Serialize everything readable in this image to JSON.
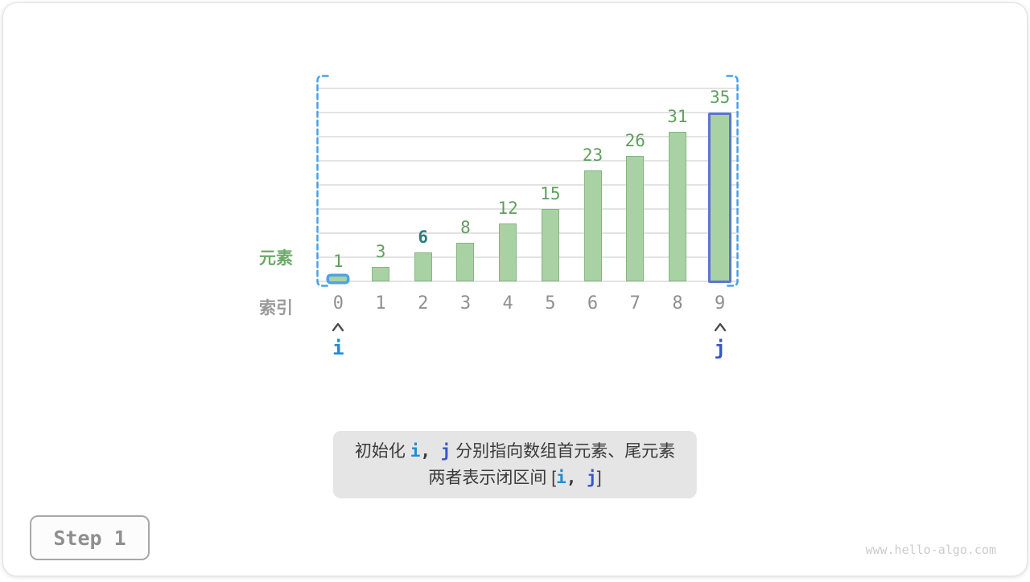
{
  "page": {
    "step_label": "Step 1",
    "watermark": "www.hello-algo.com"
  },
  "chart_data": {
    "type": "bar",
    "title": "",
    "categories": [
      "0",
      "1",
      "2",
      "3",
      "4",
      "5",
      "6",
      "7",
      "8",
      "9"
    ],
    "values": [
      1,
      3,
      6,
      8,
      12,
      15,
      23,
      26,
      31,
      35
    ],
    "ylim": [
      0,
      40
    ],
    "gridline_step": 5,
    "grid": true,
    "legend": "none",
    "xlabel": "索引",
    "ylabel": "元素",
    "target_value_index": 2,
    "range_bracket": {
      "from_index": 0,
      "to_index": 9,
      "style": "dashed-blue"
    },
    "row_labels": {
      "values_label": "元素",
      "indices_label": "索引"
    },
    "pointers": [
      {
        "label": "i",
        "index": 0,
        "color_key": "i_blue"
      },
      {
        "label": "j",
        "index": 9,
        "color_key": "j_indigo"
      }
    ]
  },
  "caption": {
    "line1": {
      "pre": "初始化 ",
      "i": "i",
      "sep": ",  ",
      "j": "j",
      "post": "  分别指向数组首元素、尾元素"
    },
    "line2": {
      "pre": "两者表示闭区间 [",
      "i": "i",
      "sep": ",  ",
      "j": "j",
      "post": "]"
    }
  },
  "colors": {
    "bar_fill": "#a8d2a4",
    "bar_border": "#85b681",
    "value_green": "#5f9f5c",
    "target_teal": "#2a7f7a",
    "index_gray": "#8f8f8f",
    "elements_green": "#6cab68",
    "indices_gray": "#9a9a9a",
    "i_blue": "#1f8dd6",
    "j_indigo": "#3a55c8",
    "bracket_blue": "#4aa0e8",
    "left_hl": "#4ba3e8",
    "right_hl": "#5d74d4",
    "caption_bg": "#e5e5e5",
    "grid_line": "#e3e3e3",
    "arrow_gray": "#4a4a4a"
  }
}
